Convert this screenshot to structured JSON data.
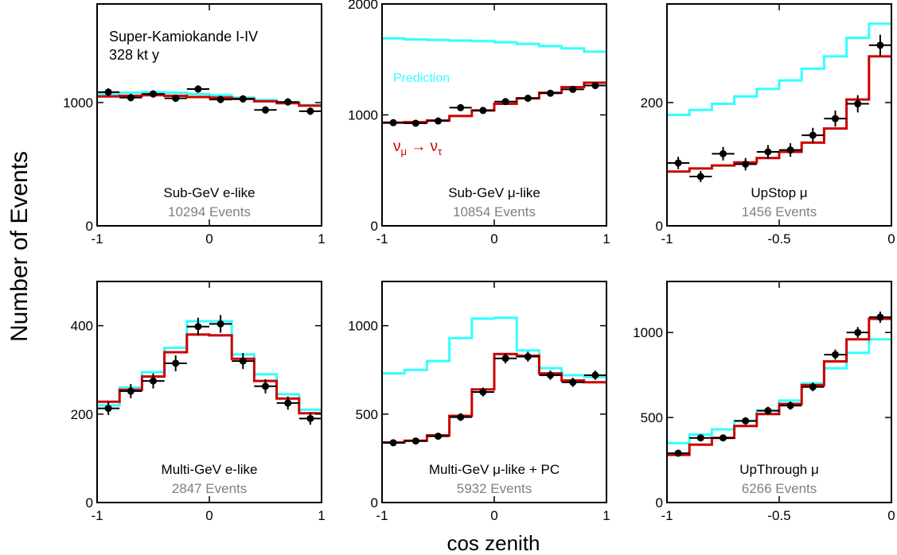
{
  "figure": {
    "ylabel": "Number of Events",
    "xlabel": "cos zenith",
    "experiment_line1": "Super-Kamiokande I-IV",
    "experiment_line2": "328 kt y",
    "prediction_label": "Prediction",
    "oscillation_label": "ν",
    "oscillation_label_sub1": "μ",
    "oscillation_label_arrow": " → ν",
    "oscillation_label_sub2": "τ"
  },
  "colors": {
    "prediction": "#33ffff",
    "oscillation": "#cc0000",
    "data": "#000000",
    "events_text": "#808080"
  },
  "chart_data": [
    {
      "type": "line",
      "title": "Sub-GeV e-like",
      "events": "10294 Events",
      "xlim": [
        -1,
        1
      ],
      "ylim": [
        0,
        1800
      ],
      "xticks": [
        -1,
        0,
        1
      ],
      "xtick_labels": [
        "-1",
        "0",
        "1"
      ],
      "yticks": [
        0,
        1000
      ],
      "ytick_labels": [
        "0",
        "1000"
      ],
      "bin_edges": [
        -1,
        -0.8,
        -0.6,
        -0.4,
        -0.2,
        0,
        0.2,
        0.4,
        0.6,
        0.8,
        1
      ],
      "series": [
        {
          "name": "Prediction",
          "values": [
            1070,
            1080,
            1085,
            1080,
            1070,
            1060,
            1040,
            1020,
            1000,
            980
          ]
        },
        {
          "name": "νμ → ντ",
          "values": [
            1050,
            1055,
            1060,
            1055,
            1045,
            1040,
            1030,
            1010,
            995,
            975
          ]
        }
      ],
      "data_points": {
        "x": [
          -0.9,
          -0.7,
          -0.5,
          -0.3,
          -0.1,
          0.1,
          0.3,
          0.5,
          0.7,
          0.9
        ],
        "y": [
          1085,
          1040,
          1070,
          1035,
          1110,
          1025,
          1030,
          940,
          1005,
          930
        ],
        "yerr": [
          30,
          30,
          30,
          30,
          30,
          30,
          30,
          30,
          30,
          30
        ]
      }
    },
    {
      "type": "line",
      "title": "Sub-GeV μ-like",
      "events": "10854 Events",
      "xlim": [
        -1,
        1
      ],
      "ylim": [
        0,
        2000
      ],
      "xticks": [
        -1,
        0,
        1
      ],
      "xtick_labels": [
        "-1",
        "0",
        "1"
      ],
      "yticks": [
        0,
        1000,
        2000
      ],
      "ytick_labels": [
        "0",
        "1000",
        "2000"
      ],
      "bin_edges": [
        -1,
        -0.8,
        -0.6,
        -0.4,
        -0.2,
        0,
        0.2,
        0.4,
        0.6,
        0.8,
        1
      ],
      "series": [
        {
          "name": "Prediction",
          "values": [
            1690,
            1680,
            1675,
            1670,
            1665,
            1655,
            1640,
            1620,
            1600,
            1570
          ]
        },
        {
          "name": "νμ → ντ",
          "values": [
            930,
            935,
            950,
            990,
            1040,
            1100,
            1150,
            1200,
            1250,
            1290
          ]
        }
      ],
      "data_points": {
        "x": [
          -0.9,
          -0.7,
          -0.5,
          -0.3,
          -0.1,
          0.1,
          0.3,
          0.5,
          0.7,
          0.9
        ],
        "y": [
          930,
          925,
          945,
          1065,
          1040,
          1120,
          1150,
          1195,
          1230,
          1265
        ],
        "yerr": [
          30,
          30,
          30,
          30,
          30,
          30,
          30,
          30,
          30,
          30
        ]
      }
    },
    {
      "type": "line",
      "title": "UpStop μ",
      "events": "1456 Events",
      "xlim": [
        -1,
        0
      ],
      "ylim": [
        0,
        360
      ],
      "xticks": [
        -1,
        -0.5,
        0
      ],
      "xtick_labels": [
        "-1",
        "-0.5",
        "0"
      ],
      "yticks": [
        0,
        200
      ],
      "ytick_labels": [
        "0",
        "200"
      ],
      "bin_edges": [
        -1,
        -0.9,
        -0.8,
        -0.7,
        -0.6,
        -0.5,
        -0.4,
        -0.3,
        -0.2,
        -0.1,
        0
      ],
      "series": [
        {
          "name": "Prediction",
          "values": [
            180,
            188,
            198,
            210,
            222,
            236,
            255,
            275,
            305,
            328
          ]
        },
        {
          "name": "νμ → ντ",
          "values": [
            88,
            93,
            98,
            103,
            110,
            120,
            135,
            158,
            205,
            275
          ]
        }
      ],
      "data_points": {
        "x": [
          -0.95,
          -0.85,
          -0.75,
          -0.65,
          -0.55,
          -0.45,
          -0.35,
          -0.25,
          -0.15,
          -0.05
        ],
        "y": [
          102,
          80,
          117,
          100,
          120,
          123,
          147,
          174,
          198,
          293
        ],
        "yerr": [
          10,
          9,
          11,
          10,
          11,
          11,
          12,
          13,
          14,
          17
        ]
      }
    },
    {
      "type": "line",
      "title": "Multi-GeV e-like",
      "events": "2847 Events",
      "xlim": [
        -1,
        1
      ],
      "ylim": [
        0,
        500
      ],
      "xticks": [
        -1,
        0,
        1
      ],
      "xtick_labels": [
        "-1",
        "0",
        "1"
      ],
      "yticks": [
        0,
        200,
        400
      ],
      "ytick_labels": [
        "0",
        "200",
        "400"
      ],
      "bin_edges": [
        -1,
        -0.8,
        -0.6,
        -0.4,
        -0.2,
        0,
        0.2,
        0.4,
        0.6,
        0.8,
        1
      ],
      "series": [
        {
          "name": "Prediction",
          "values": [
            220,
            260,
            295,
            350,
            410,
            410,
            335,
            290,
            245,
            210
          ]
        },
        {
          "name": "νμ → ντ",
          "values": [
            228,
            255,
            285,
            340,
            380,
            378,
            325,
            275,
            235,
            202
          ]
        }
      ],
      "data_points": {
        "x": [
          -0.9,
          -0.7,
          -0.5,
          -0.3,
          -0.1,
          0.1,
          0.3,
          0.5,
          0.7,
          0.9
        ],
        "y": [
          213,
          252,
          275,
          315,
          398,
          404,
          320,
          263,
          225,
          190
        ],
        "yerr": [
          15,
          16,
          17,
          18,
          20,
          20,
          18,
          16,
          15,
          14
        ]
      }
    },
    {
      "type": "line",
      "title": "Multi-GeV μ-like + PC",
      "events": "5932 Events",
      "xlim": [
        -1,
        1
      ],
      "ylim": [
        0,
        1250
      ],
      "xticks": [
        -1,
        0,
        1
      ],
      "xtick_labels": [
        "-1",
        "0",
        "1"
      ],
      "yticks": [
        0,
        500,
        1000
      ],
      "ytick_labels": [
        "0",
        "500",
        "1000"
      ],
      "bin_edges": [
        -1,
        -0.8,
        -0.6,
        -0.4,
        -0.2,
        0,
        0.2,
        0.4,
        0.6,
        0.8,
        1
      ],
      "series": [
        {
          "name": "Prediction",
          "values": [
            730,
            750,
            800,
            930,
            1040,
            1045,
            860,
            760,
            720,
            710
          ]
        },
        {
          "name": "νμ → ντ",
          "values": [
            340,
            350,
            380,
            490,
            640,
            840,
            830,
            730,
            690,
            680
          ]
        }
      ],
      "data_points": {
        "x": [
          -0.9,
          -0.7,
          -0.5,
          -0.3,
          -0.1,
          0.1,
          0.3,
          0.5,
          0.7,
          0.9
        ],
        "y": [
          338,
          348,
          375,
          483,
          625,
          815,
          825,
          720,
          680,
          720
        ],
        "yerr": [
          18,
          18,
          19,
          22,
          25,
          28,
          28,
          26,
          26,
          26
        ]
      }
    },
    {
      "type": "line",
      "title": "UpThrough μ",
      "events": "6266 Events",
      "xlim": [
        -1,
        0
      ],
      "ylim": [
        0,
        1300
      ],
      "xticks": [
        -1,
        -0.5,
        0
      ],
      "xtick_labels": [
        "-1",
        "-0.5",
        "0"
      ],
      "yticks": [
        0,
        500,
        1000
      ],
      "ytick_labels": [
        "0",
        "500",
        "1000"
      ],
      "bin_edges": [
        -1,
        -0.9,
        -0.8,
        -0.7,
        -0.6,
        -0.5,
        -0.4,
        -0.3,
        -0.2,
        -0.1,
        0
      ],
      "series": [
        {
          "name": "Prediction",
          "values": [
            350,
            400,
            430,
            480,
            540,
            600,
            700,
            790,
            880,
            960
          ]
        },
        {
          "name": "νμ → ντ",
          "values": [
            280,
            340,
            380,
            450,
            520,
            580,
            690,
            830,
            960,
            1080
          ]
        }
      ],
      "data_points": {
        "x": [
          -0.95,
          -0.85,
          -0.75,
          -0.65,
          -0.55,
          -0.45,
          -0.35,
          -0.25,
          -0.15,
          -0.05
        ],
        "y": [
          290,
          380,
          380,
          480,
          540,
          570,
          680,
          870,
          1000,
          1090
        ],
        "yerr": [
          17,
          20,
          20,
          22,
          23,
          24,
          26,
          30,
          32,
          33
        ]
      }
    }
  ]
}
